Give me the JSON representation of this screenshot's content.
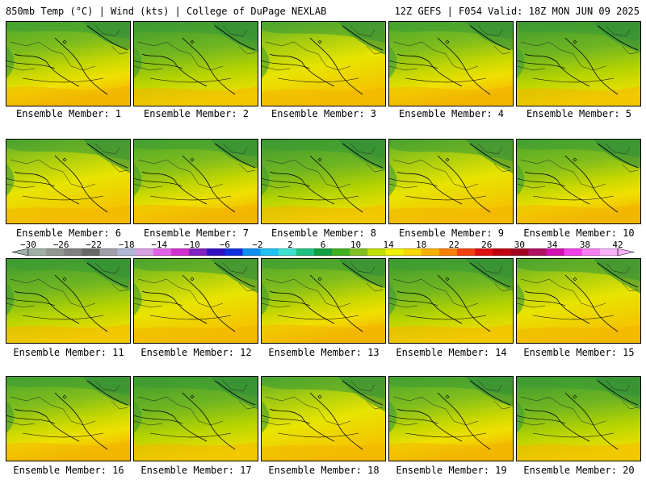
{
  "header": {
    "left": "850mb Temp (°C) | Wind (kts) | College of DuPage NEXLAB",
    "right": "12Z GEFS | F054 Valid: 18Z MON JUN 09 2025"
  },
  "members": [
    "Ensemble Member: 1",
    "Ensemble Member: 2",
    "Ensemble Member: 3",
    "Ensemble Member: 4",
    "Ensemble Member: 5",
    "Ensemble Member: 6",
    "Ensemble Member: 7",
    "Ensemble Member: 8",
    "Ensemble Member: 9",
    "Ensemble Member: 10",
    "Ensemble Member: 11",
    "Ensemble Member: 12",
    "Ensemble Member: 13",
    "Ensemble Member: 14",
    "Ensemble Member: 15",
    "Ensemble Member: 16",
    "Ensemble Member: 17",
    "Ensemble Member: 18",
    "Ensemble Member: 19",
    "Ensemble Member: 20"
  ],
  "colorbar": {
    "ticks": [
      "-30",
      "-26",
      "-22",
      "-18",
      "-14",
      "-10",
      "-6",
      "-2",
      "2",
      "6",
      "10",
      "14",
      "18",
      "22",
      "26",
      "30",
      "34",
      "38",
      "42"
    ],
    "colors": [
      "#a0b0a8",
      "#909890",
      "#808080",
      "#686868",
      "#a0a0a8",
      "#b0b8d8",
      "#d8a0e0",
      "#e060e8",
      "#d030d0",
      "#8020c0",
      "#3010c0",
      "#1030e0",
      "#1090f0",
      "#20c0f0",
      "#40e0d0",
      "#20c080",
      "#10a040",
      "#40b020",
      "#80c020",
      "#c0e000",
      "#f0f000",
      "#f8d800",
      "#f8b000",
      "#f88000",
      "#f04010",
      "#e01010",
      "#c00010",
      "#a00020",
      "#b01060",
      "#d010b0",
      "#f040e8",
      "#f880f0",
      "#f8b0f8"
    ]
  }
}
